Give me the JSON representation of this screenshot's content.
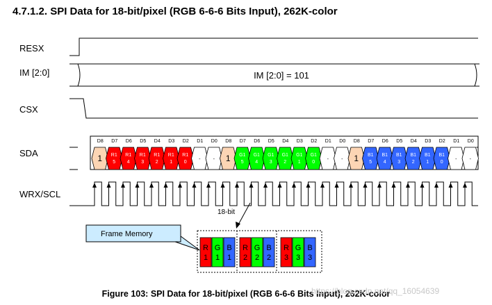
{
  "title": "4.7.1.2. SPI Data for 18-bit/pixel (RGB 6-6-6 Bits Input), 262K-color",
  "signals": {
    "resx": "RESX",
    "im": "IM [2:0]",
    "csx": "CSX",
    "sda": "SDA",
    "wrx": "WRX/SCL"
  },
  "im_value_text": "IM [2:0] = 101",
  "bit_headers": [
    "D8",
    "D7",
    "D6",
    "D5",
    "D4",
    "D3",
    "D2",
    "D1",
    "D0",
    "D8",
    "D7",
    "D6",
    "D5",
    "D4",
    "D3",
    "D2",
    "D1",
    "D0",
    "D8",
    "D7",
    "D6",
    "D5",
    "D4",
    "D3",
    "D2",
    "D1",
    "D0"
  ],
  "sda_cells": [
    {
      "l1": "1",
      "l2": "",
      "kind": "lead"
    },
    {
      "l1": "R1",
      "l2": "5",
      "kind": "red"
    },
    {
      "l1": "R1",
      "l2": "4",
      "kind": "red"
    },
    {
      "l1": "R1",
      "l2": "3",
      "kind": "red"
    },
    {
      "l1": "R1",
      "l2": "2",
      "kind": "red"
    },
    {
      "l1": "R1",
      "l2": "1",
      "kind": "red"
    },
    {
      "l1": "R1",
      "l2": "0",
      "kind": "red"
    },
    {
      "l1": "-",
      "l2": "",
      "kind": "blank"
    },
    {
      "l1": "-",
      "l2": "",
      "kind": "blank"
    },
    {
      "l1": "1",
      "l2": "",
      "kind": "lead"
    },
    {
      "l1": "G1",
      "l2": "5",
      "kind": "green"
    },
    {
      "l1": "G1",
      "l2": "4",
      "kind": "green"
    },
    {
      "l1": "G1",
      "l2": "3",
      "kind": "green"
    },
    {
      "l1": "G1",
      "l2": "2",
      "kind": "green"
    },
    {
      "l1": "G1",
      "l2": "1",
      "kind": "green"
    },
    {
      "l1": "G1",
      "l2": "0",
      "kind": "green"
    },
    {
      "l1": "-",
      "l2": "",
      "kind": "blank"
    },
    {
      "l1": "-",
      "l2": "",
      "kind": "blank"
    },
    {
      "l1": "1",
      "l2": "",
      "kind": "lead"
    },
    {
      "l1": "B1",
      "l2": "5",
      "kind": "blue"
    },
    {
      "l1": "B1",
      "l2": "4",
      "kind": "blue"
    },
    {
      "l1": "B1",
      "l2": "3",
      "kind": "blue"
    },
    {
      "l1": "B1",
      "l2": "2",
      "kind": "blue"
    },
    {
      "l1": "B1",
      "l2": "1",
      "kind": "blue"
    },
    {
      "l1": "B1",
      "l2": "0",
      "kind": "blue"
    },
    {
      "l1": "-",
      "l2": "",
      "kind": "blank"
    },
    {
      "l1": "-",
      "l2": "",
      "kind": "blank"
    }
  ],
  "bit_width_label": "18-bit",
  "frame_memory_label": "Frame Memory",
  "pixels": [
    [
      {
        "l1": "R",
        "l2": "1",
        "kind": "red"
      },
      {
        "l1": "G",
        "l2": "1",
        "kind": "green"
      },
      {
        "l1": "B",
        "l2": "1",
        "kind": "blue"
      }
    ],
    [
      {
        "l1": "R",
        "l2": "2",
        "kind": "red"
      },
      {
        "l1": "G",
        "l2": "2",
        "kind": "green"
      },
      {
        "l1": "B",
        "l2": "2",
        "kind": "blue"
      }
    ],
    [
      {
        "l1": "R",
        "l2": "3",
        "kind": "red"
      },
      {
        "l1": "G",
        "l2": "3",
        "kind": "green"
      },
      {
        "l1": "B",
        "l2": "3",
        "kind": "blue"
      }
    ]
  ],
  "caption": "Figure 103: SPI Data for 18-bit/pixel (RGB 6-6-6 Bits Input), 262K-color",
  "watermark": "https://blog.csdn.net/qq_16054639",
  "colors": {
    "red": "#ff0000",
    "green": "#00ff00",
    "blue": "#3366ff",
    "lead": "#fcd5b4",
    "blank": "#ffffff",
    "callout": "#ccecff"
  }
}
